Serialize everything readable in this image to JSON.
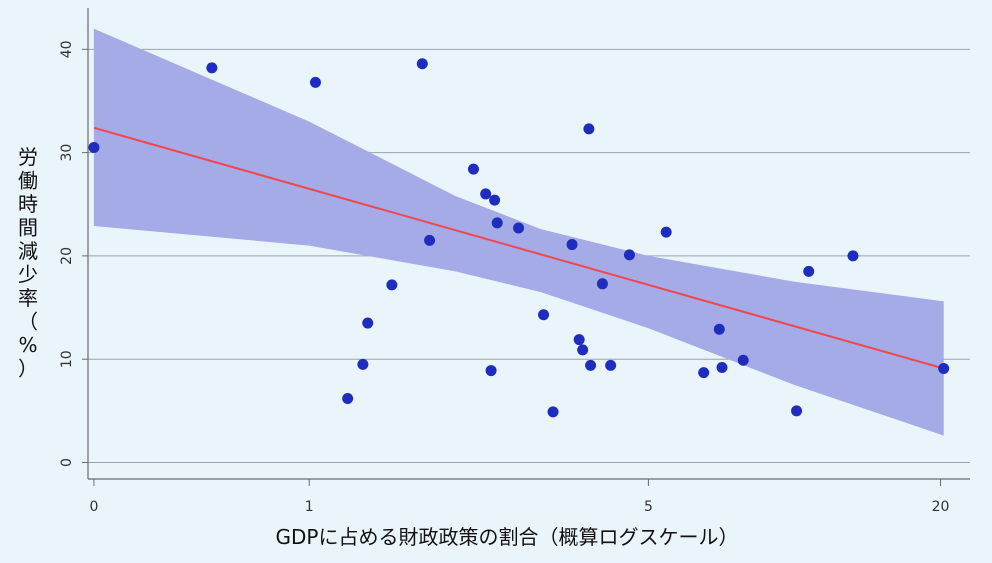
{
  "chart_data": {
    "type": "scatter",
    "title": "",
    "xlabel": "GDPに占める財政政策の割合（概算ログスケール）",
    "ylabel_chars": [
      "労",
      "働",
      "時",
      "間",
      "減",
      "少",
      "率",
      "（",
      "%",
      "）"
    ],
    "x_scale": "log",
    "xlim": [
      0.35,
      23
    ],
    "ylim": [
      -1.5,
      44
    ],
    "x_ticks": [
      {
        "value": 0.36,
        "label": "0"
      },
      {
        "value": 1,
        "label": "1"
      },
      {
        "value": 5,
        "label": "5"
      },
      {
        "value": 20,
        "label": "20"
      }
    ],
    "y_ticks": [
      {
        "value": 0,
        "label": "0"
      },
      {
        "value": 10,
        "label": "10"
      },
      {
        "value": 20,
        "label": "20"
      },
      {
        "value": 30,
        "label": "30"
      },
      {
        "value": 40,
        "label": "40"
      }
    ],
    "grid": true,
    "points": [
      {
        "x": 0.36,
        "y": 30.5
      },
      {
        "x": 0.63,
        "y": 38.2
      },
      {
        "x": 1.03,
        "y": 36.8
      },
      {
        "x": 1.2,
        "y": 6.2
      },
      {
        "x": 1.29,
        "y": 9.5
      },
      {
        "x": 1.32,
        "y": 13.5
      },
      {
        "x": 1.48,
        "y": 17.2
      },
      {
        "x": 1.71,
        "y": 38.6
      },
      {
        "x": 1.77,
        "y": 21.5
      },
      {
        "x": 2.18,
        "y": 28.4
      },
      {
        "x": 2.31,
        "y": 26.0
      },
      {
        "x": 2.37,
        "y": 8.9
      },
      {
        "x": 2.41,
        "y": 25.4
      },
      {
        "x": 2.44,
        "y": 23.2
      },
      {
        "x": 2.7,
        "y": 22.7
      },
      {
        "x": 3.04,
        "y": 14.3
      },
      {
        "x": 3.18,
        "y": 4.9
      },
      {
        "x": 3.48,
        "y": 21.1
      },
      {
        "x": 3.6,
        "y": 11.9
      },
      {
        "x": 3.66,
        "y": 10.9
      },
      {
        "x": 3.77,
        "y": 32.3
      },
      {
        "x": 3.8,
        "y": 9.4
      },
      {
        "x": 4.02,
        "y": 17.3
      },
      {
        "x": 4.18,
        "y": 9.4
      },
      {
        "x": 4.57,
        "y": 20.1
      },
      {
        "x": 5.44,
        "y": 22.3
      },
      {
        "x": 6.5,
        "y": 8.7
      },
      {
        "x": 7.0,
        "y": 12.9
      },
      {
        "x": 7.09,
        "y": 9.2
      },
      {
        "x": 7.84,
        "y": 9.9
      },
      {
        "x": 10.1,
        "y": 5.0
      },
      {
        "x": 10.7,
        "y": 18.5
      },
      {
        "x": 13.2,
        "y": 20.0
      },
      {
        "x": 20.3,
        "y": 9.1
      }
    ],
    "fit_line": {
      "x": [
        0.36,
        20.3
      ],
      "y": [
        32.4,
        9.1
      ]
    },
    "confidence_band": {
      "x": [
        0.36,
        1.0,
        2.0,
        3.0,
        5.0,
        10.0,
        20.3
      ],
      "upper": [
        42.0,
        33.0,
        25.8,
        22.6,
        20.0,
        17.5,
        15.6
      ],
      "lower": [
        22.9,
        21.0,
        18.5,
        16.5,
        13.0,
        7.5,
        2.6
      ]
    },
    "colors": {
      "background": "#eaf4fb",
      "band": "#a4abe6",
      "fit_line": "#f0474f",
      "points": "#1f2dbf",
      "grid": "#9aa3ad",
      "axis": "#6b6b6b"
    }
  }
}
